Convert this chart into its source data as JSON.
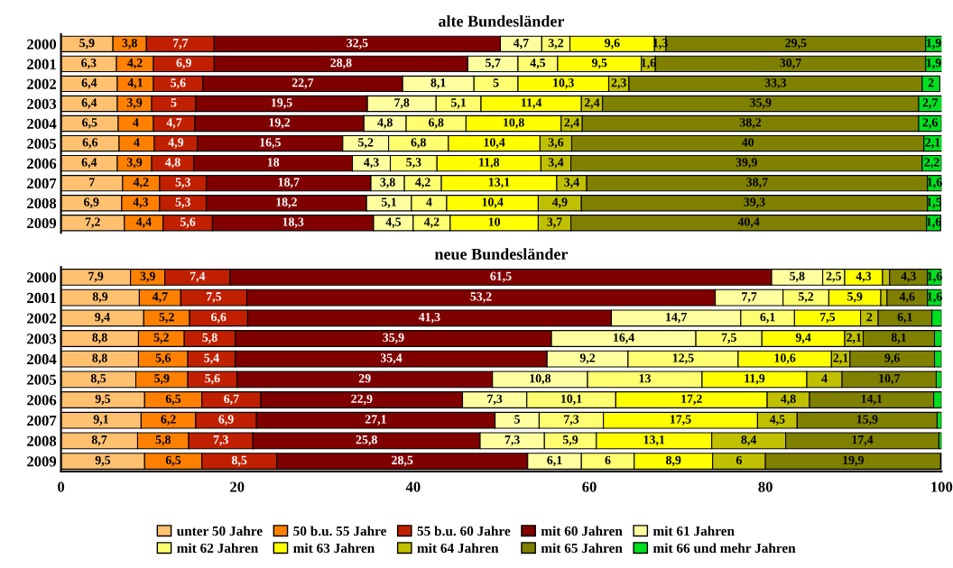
{
  "chart_data": [
    {
      "type": "bar",
      "orientation": "horizontal",
      "stacked": true,
      "title": "alte Bundesländer",
      "categories": [
        "2000",
        "2001",
        "2002",
        "2003",
        "2004",
        "2005",
        "2006",
        "2007",
        "2008",
        "2009"
      ],
      "xlim": [
        0,
        100
      ],
      "xticks": [
        0,
        20,
        40,
        60,
        80,
        100
      ],
      "tick_labels": "y",
      "series": [
        {
          "color": "#ffc070",
          "values": [
            5.9,
            6.3,
            6.4,
            6.4,
            6.5,
            6.6,
            6.4,
            7,
            6.9,
            7.2
          ],
          "value_labels": [
            "5,9",
            "6,3",
            "6,4",
            "6,4",
            "6,5",
            "6,6",
            "6,4",
            "7",
            "6,9",
            "7,2"
          ]
        },
        {
          "color": "#ff8000",
          "values": [
            3.8,
            4.2,
            4.1,
            3.9,
            4,
            4,
            3.9,
            4.2,
            4.3,
            4.4
          ],
          "value_labels": [
            "3,8",
            "4,2",
            "4,1",
            "3,9",
            "4",
            "4",
            "3,9",
            "4,2",
            "4,3",
            "4,4"
          ]
        },
        {
          "color": "#c02000",
          "values": [
            7.7,
            6.9,
            5.6,
            5,
            4.7,
            4.9,
            4.8,
            5.3,
            5.3,
            5.6
          ],
          "value_labels": [
            "7,7",
            "6,9",
            "5,6",
            "5",
            "4,7",
            "4,9",
            "4,8",
            "5,3",
            "5,3",
            "5,6"
          ]
        },
        {
          "color": "#800000",
          "values": [
            32.5,
            28.8,
            22.7,
            19.5,
            19.2,
            16.5,
            18,
            18.7,
            18.2,
            18.3
          ],
          "value_labels": [
            "32,5",
            "28,8",
            "22,7",
            "19,5",
            "19,2",
            "16,5",
            "18",
            "18,7",
            "18,2",
            "18,3"
          ]
        },
        {
          "color": "#ffffa0",
          "values": [
            4.7,
            5.7,
            8.1,
            7.8,
            4.8,
            5.2,
            4.3,
            3.8,
            5.1,
            4.5
          ],
          "value_labels": [
            "4,7",
            "5,7",
            "8,1",
            "7,8",
            "4,8",
            "5,2",
            "4,3",
            "3,8",
            "5,1",
            "4,5"
          ]
        },
        {
          "color": "#ffff70",
          "values": [
            3.2,
            4.5,
            5,
            5.1,
            6.8,
            6.8,
            5.3,
            4.2,
            4,
            4.2
          ],
          "value_labels": [
            "3,2",
            "4,5",
            "5",
            "5,1",
            "6,8",
            "6,8",
            "5,3",
            "4,2",
            "4",
            "4,2"
          ]
        },
        {
          "color": "#ffff00",
          "values": [
            9.6,
            9.5,
            10.3,
            11.4,
            10.8,
            10.4,
            11.8,
            13.1,
            10.4,
            10
          ],
          "value_labels": [
            "9,6",
            "9,5",
            "10,3",
            "11,4",
            "10,8",
            "10,4",
            "11,8",
            "13,1",
            "10,4",
            "10"
          ]
        },
        {
          "color": "#c0c000",
          "values": [
            1.3,
            1.6,
            2.3,
            2.4,
            2.4,
            3.6,
            3.4,
            3.4,
            4.9,
            3.7
          ],
          "value_labels": [
            "1,3",
            "1,6",
            "2,3",
            "2,4",
            "2,4",
            "3,6",
            "3,4",
            "3,4",
            "4,9",
            "3,7"
          ]
        },
        {
          "color": "#808000",
          "values": [
            29.5,
            30.7,
            33.3,
            35.9,
            38.2,
            40,
            39.9,
            38.7,
            39.3,
            40.4
          ],
          "value_labels": [
            "29,5",
            "30,7",
            "33,3",
            "35,9",
            "38,2",
            "40",
            "39,9",
            "38,7",
            "39,3",
            "40,4"
          ]
        },
        {
          "color": "#00e020",
          "values": [
            1.9,
            1.9,
            2,
            2.7,
            2.6,
            2.1,
            2.2,
            1.6,
            1.5,
            1.6
          ],
          "value_labels": [
            "1,9",
            "1,9",
            "2",
            "2,7",
            "2,6",
            "2,1",
            "2,2",
            "1,6",
            "1,5",
            "1,6"
          ]
        }
      ]
    },
    {
      "type": "bar",
      "orientation": "horizontal",
      "stacked": true,
      "title": "neue Bundesländer",
      "categories": [
        "2000",
        "2001",
        "2002",
        "2003",
        "2004",
        "2005",
        "2006",
        "2007",
        "2008",
        "2009"
      ],
      "xlim": [
        0,
        100
      ],
      "xticks": [
        0,
        20,
        40,
        60,
        80,
        100
      ],
      "legend": "bottom",
      "series": [
        {
          "name": "unter 50 Jahre",
          "color": "#ffc070",
          "values": [
            7.9,
            8.9,
            9.4,
            8.8,
            8.8,
            8.5,
            9.5,
            9.1,
            8.7,
            9.5
          ],
          "value_labels": [
            "7,9",
            "8,9",
            "9,4",
            "8,8",
            "8,8",
            "8,5",
            "9,5",
            "9,1",
            "8,7",
            "9,5"
          ]
        },
        {
          "name": "50 b.u. 55 Jahre",
          "color": "#ff8000",
          "values": [
            3.9,
            4.7,
            5.2,
            5.2,
            5.6,
            5.9,
            6.5,
            6.2,
            5.8,
            6.5
          ],
          "value_labels": [
            "3,9",
            "4,7",
            "5,2",
            "5,2",
            "5,6",
            "5,9",
            "6,5",
            "6,2",
            "5,8",
            "6,5"
          ]
        },
        {
          "name": "55 b.u. 60 Jahre",
          "color": "#c02000",
          "values": [
            7.4,
            7.5,
            6.6,
            5.8,
            5.4,
            5.6,
            6.7,
            6.9,
            7.3,
            8.5
          ],
          "value_labels": [
            "7,4",
            "7,5",
            "6,6",
            "5,8",
            "5,4",
            "5,6",
            "6,7",
            "6,9",
            "7,3",
            "8,5"
          ]
        },
        {
          "name": "mit 60 Jahren",
          "color": "#800000",
          "values": [
            61.5,
            53.2,
            41.3,
            35.9,
            35.4,
            29,
            22.9,
            27.1,
            25.8,
            28.5
          ],
          "value_labels": [
            "61,5",
            "53,2",
            "41,3",
            "35,9",
            "35,4",
            "29",
            "22,9",
            "27,1",
            "25,8",
            "28,5"
          ]
        },
        {
          "name": "mit 61 Jahren",
          "color": "#ffffa0",
          "values": [
            5.8,
            7.7,
            14.7,
            16.4,
            9.2,
            10.8,
            7.3,
            5,
            7.3,
            6.1
          ],
          "value_labels": [
            "5,8",
            "7,7",
            "14,7",
            "16,4",
            "9,2",
            "10,8",
            "7,3",
            "5",
            "7,3",
            "6,1"
          ]
        },
        {
          "name": "mit 62 Jahren",
          "color": "#ffff70",
          "values": [
            2.5,
            5.2,
            6.1,
            7.5,
            12.5,
            13,
            10.1,
            7.3,
            5.9,
            6
          ],
          "value_labels": [
            "2,5",
            "5,2",
            "6,1",
            "7,5",
            "12,5",
            "13",
            "10,1",
            "7,3",
            "5,9",
            "6"
          ]
        },
        {
          "name": "mit 63 Jahren",
          "color": "#ffff00",
          "values": [
            4.3,
            5.9,
            7.5,
            9.4,
            10.6,
            11.9,
            17.2,
            17.5,
            13.1,
            8.9
          ],
          "value_labels": [
            "4,3",
            "5,9",
            "7,5",
            "9,4",
            "10,6",
            "11,9",
            "17,2",
            "17,5",
            "13,1",
            "8,9"
          ]
        },
        {
          "name": "mit 64 Jahren",
          "color": "#c0c000",
          "values": [
            0.8,
            0.7,
            2,
            2.1,
            2.1,
            4,
            4.8,
            4.5,
            8.4,
            6
          ],
          "value_labels": [
            null,
            null,
            "2",
            "2,1",
            "2,1",
            "4",
            "4,8",
            "4,5",
            "8,4",
            "6"
          ]
        },
        {
          "name": "mit 65 Jahren",
          "color": "#808000",
          "values": [
            4.3,
            4.6,
            6.1,
            8.1,
            9.6,
            10.7,
            14.1,
            15.9,
            17.4,
            19.9
          ],
          "value_labels": [
            "4,3",
            "4,6",
            "6,1",
            "8,1",
            "9,6",
            "10,7",
            "14,1",
            "15,9",
            "17,4",
            "19,9"
          ]
        },
        {
          "name": "mit 66 und mehr Jahren",
          "color": "#00e020",
          "values": [
            1.6,
            1.6,
            1.1,
            0.8,
            0.8,
            0.6,
            0.9,
            0.5,
            0.3,
            0.1
          ],
          "value_labels": [
            "1,6",
            "1,6",
            null,
            null,
            null,
            null,
            null,
            null,
            null,
            null
          ]
        }
      ]
    }
  ]
}
